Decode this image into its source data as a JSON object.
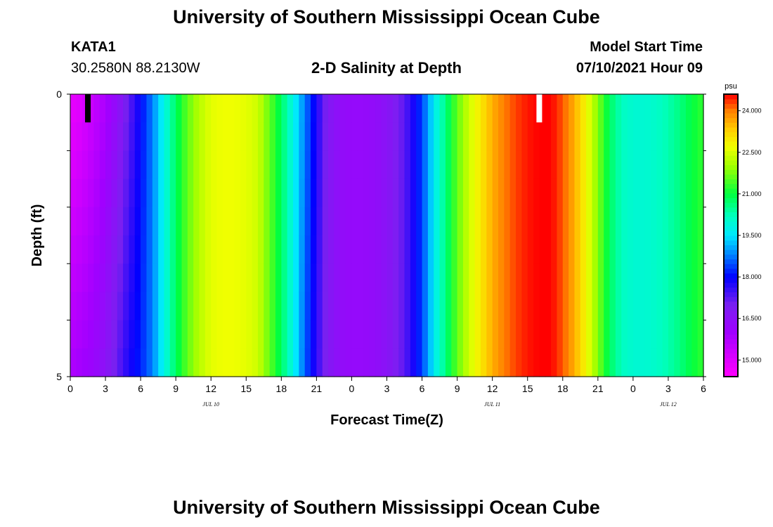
{
  "title": "University of Southern Mississippi Ocean Cube",
  "footer_title": "University of Southern Mississippi Ocean Cube",
  "station": "KATA1",
  "coordinates": "30.2580N  88.2130W",
  "subtitle": "2-D Salinity at Depth",
  "model_start_label": "Model Start Time",
  "model_start_value": "07/10/2021 Hour 09",
  "chart_data": {
    "type": "heatmap",
    "title": "2-D Salinity at Depth",
    "xlabel": "Forecast Time(Z)",
    "ylabel": "Depth (ft)",
    "x_unit": "hours since 07/10/2021 00Z",
    "xlim": [
      0,
      54
    ],
    "ylim": [
      5,
      0
    ],
    "x_tick_values": [
      0,
      3,
      6,
      9,
      12,
      15,
      18,
      21,
      24,
      27,
      30,
      33,
      36,
      39,
      42,
      45,
      48,
      51,
      54
    ],
    "x_tick_labels": [
      "0",
      "3",
      "6",
      "9",
      "12",
      "15",
      "18",
      "21",
      "0",
      "3",
      "6",
      "9",
      "12",
      "15",
      "18",
      "21",
      "0",
      "3",
      "6"
    ],
    "date_labels": [
      {
        "label": "JUL 10",
        "at": 12
      },
      {
        "label": "JUL 11",
        "at": 36
      },
      {
        "label": "JUL 12",
        "at": 51
      }
    ],
    "y_tick_labels": [
      {
        "value": 0,
        "label": "0"
      },
      {
        "value": 1,
        "label": ""
      },
      {
        "value": 2,
        "label": ""
      },
      {
        "value": 3,
        "label": ""
      },
      {
        "value": 4,
        "label": ""
      },
      {
        "value": 5,
        "label": "5"
      }
    ],
    "colorbar": {
      "unit": "psu",
      "min": 14.4,
      "max": 24.6,
      "tick_values": [
        15.0,
        16.5,
        18.0,
        19.5,
        21.0,
        22.5,
        24.0
      ],
      "tick_labels": [
        "15.000",
        "16.500",
        "18.000",
        "19.500",
        "21.000",
        "22.500",
        "24.000"
      ],
      "colors": [
        {
          "v": 14.4,
          "c": "#ff00ff"
        },
        {
          "v": 15.0,
          "c": "#e000ff"
        },
        {
          "v": 16.0,
          "c": "#a000ff"
        },
        {
          "v": 17.0,
          "c": "#7a20f0"
        },
        {
          "v": 18.0,
          "c": "#0000ff"
        },
        {
          "v": 18.8,
          "c": "#0080ff"
        },
        {
          "v": 19.5,
          "c": "#00e8ff"
        },
        {
          "v": 20.2,
          "c": "#00ffc0"
        },
        {
          "v": 21.0,
          "c": "#00ff40"
        },
        {
          "v": 22.0,
          "c": "#a0ff00"
        },
        {
          "v": 22.7,
          "c": "#f0ff00"
        },
        {
          "v": 23.3,
          "c": "#ffd000"
        },
        {
          "v": 24.0,
          "c": "#ff8000"
        },
        {
          "v": 24.6,
          "c": "#ff0000"
        }
      ]
    },
    "time_series": {
      "x": [
        0,
        1,
        2,
        3,
        4,
        5,
        6,
        7,
        8,
        9,
        10,
        11,
        12,
        13,
        14,
        15,
        16,
        17,
        18,
        19,
        20,
        21,
        22,
        23,
        24,
        25,
        26,
        27,
        28,
        29,
        30,
        31,
        32,
        33,
        34,
        35,
        36,
        37,
        38,
        39,
        40,
        41,
        42,
        43,
        44,
        45,
        46,
        47,
        48,
        49,
        50,
        51,
        52,
        53,
        54
      ],
      "salinity_surface": [
        14.8,
        15.0,
        15.4,
        15.8,
        16.4,
        17.2,
        18.0,
        18.8,
        19.8,
        20.8,
        21.6,
        22.2,
        22.6,
        22.7,
        22.7,
        22.6,
        22.4,
        21.6,
        20.8,
        19.8,
        18.8,
        17.8,
        16.8,
        16.4,
        16.3,
        16.3,
        16.4,
        16.6,
        17.0,
        17.6,
        18.4,
        19.6,
        20.6,
        21.6,
        22.4,
        23.0,
        23.6,
        24.0,
        24.3,
        24.5,
        24.6,
        24.6,
        24.2,
        23.6,
        22.8,
        21.8,
        20.8,
        20.2,
        20.0,
        20.0,
        20.1,
        20.3,
        20.6,
        21.0,
        21.3
      ],
      "salinity_bottom": [
        15.8,
        16.0,
        16.2,
        16.6,
        17.2,
        17.8,
        18.2,
        18.8,
        19.8,
        20.8,
        21.6,
        22.2,
        22.6,
        22.7,
        22.7,
        22.6,
        22.4,
        21.6,
        20.8,
        19.8,
        18.6,
        17.6,
        16.8,
        16.4,
        16.3,
        16.3,
        16.4,
        16.6,
        17.0,
        17.6,
        18.4,
        19.6,
        20.6,
        21.6,
        22.4,
        23.0,
        23.6,
        24.0,
        24.3,
        24.5,
        24.6,
        24.6,
        24.2,
        23.6,
        22.8,
        21.8,
        20.8,
        20.2,
        20.0,
        20.0,
        20.1,
        20.3,
        20.6,
        21.0,
        21.3
      ]
    },
    "markers": [
      {
        "x": 1.5,
        "depth_to": 0.5,
        "color": "#000000"
      },
      {
        "x": 40.0,
        "depth_to": 0.5,
        "color": "#ffffff"
      }
    ],
    "grid": false
  }
}
